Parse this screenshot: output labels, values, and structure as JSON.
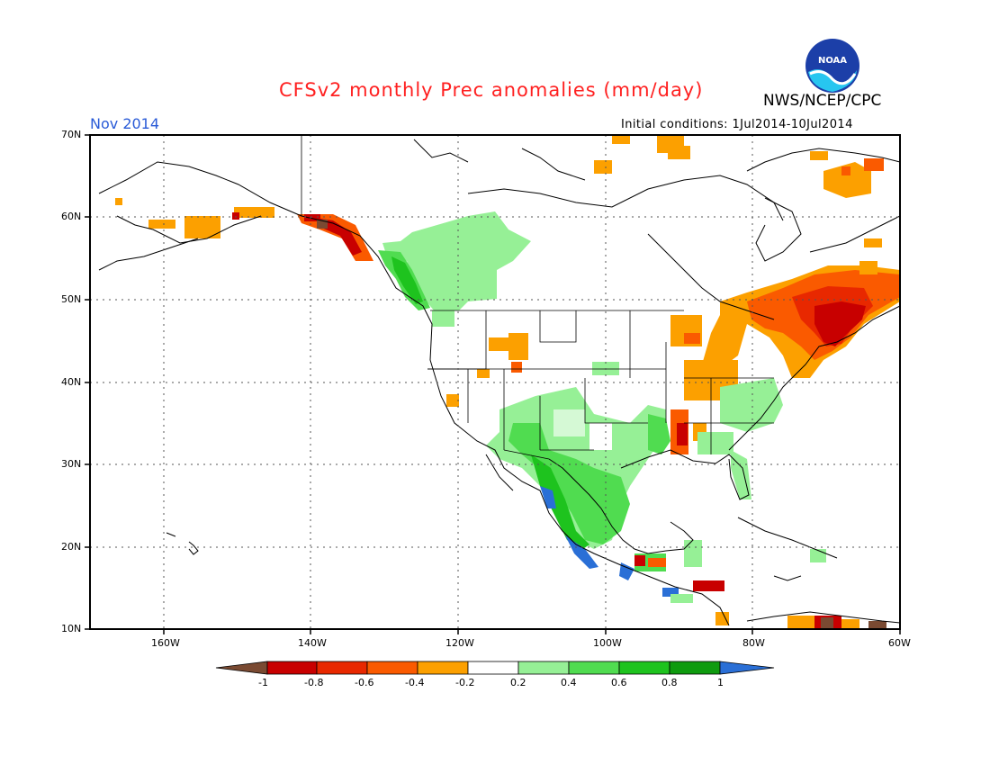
{
  "title": "CFSv2 monthly Prec anomalies (mm/day)",
  "org": "NWS/NCEP/CPC",
  "logo_text": "NOAA",
  "month": "Nov 2014",
  "initial_conditions": "Initial conditions: 1Jul2014-10Jul2014",
  "lat_labels": [
    "70N",
    "60N",
    "50N",
    "40N",
    "30N",
    "20N",
    "10N"
  ],
  "lon_labels": [
    "160W",
    "140W",
    "120W",
    "100W",
    "80W",
    "60W"
  ],
  "colorbar": {
    "labels": [
      "-1",
      "-0.8",
      "-0.6",
      "-0.4",
      "-0.2",
      "0.2",
      "0.4",
      "0.6",
      "0.8",
      "1"
    ],
    "colors": [
      "#7a4a32",
      "#c80000",
      "#e82800",
      "#fa5a00",
      "#fca000",
      "#ffffff",
      "#96f096",
      "#50dc50",
      "#1ec31e",
      "#0f9b0f",
      "#2a6fd6"
    ]
  },
  "map": {
    "type": "precipitation-anomaly",
    "lat_range": [
      10,
      70
    ],
    "lon_range": [
      -170,
      -60
    ],
    "grid": true
  }
}
